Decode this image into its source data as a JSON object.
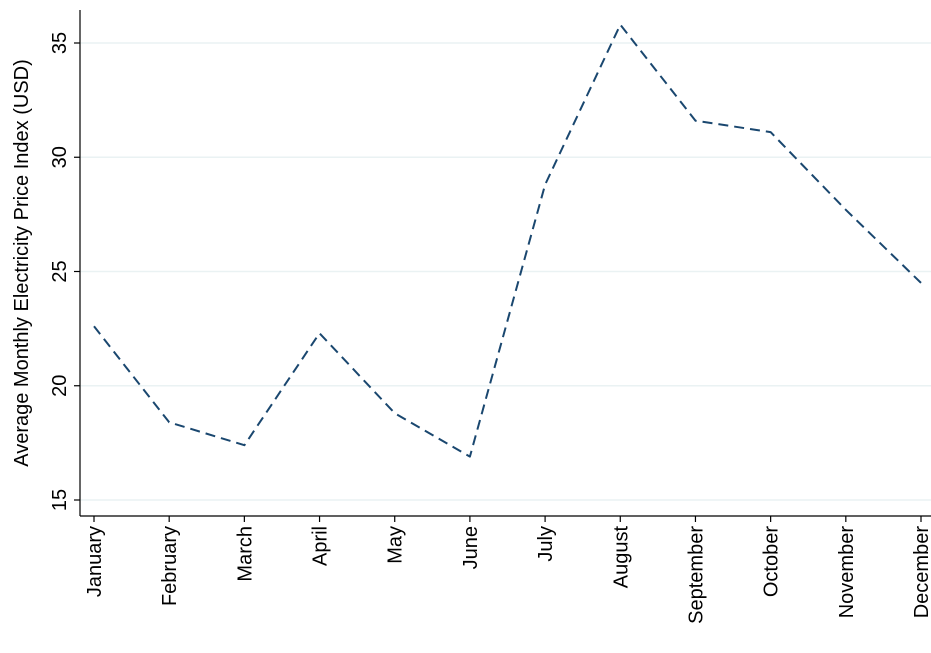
{
  "chart_data": {
    "type": "line",
    "title": "",
    "xlabel": "",
    "ylabel": "Average Monthly Electricity Price Index (USD)",
    "categories": [
      "January",
      "February",
      "March",
      "April",
      "May",
      "June",
      "July",
      "August",
      "September",
      "October",
      "November",
      "December"
    ],
    "series": [
      {
        "values": [
          22.6,
          18.4,
          17.4,
          22.3,
          18.8,
          16.9,
          28.8,
          35.8,
          31.6,
          31.1,
          27.7,
          24.5
        ],
        "color": "#1a476f",
        "line_style": "dashed"
      }
    ],
    "yticks": [
      15,
      20,
      25,
      30,
      35
    ],
    "ylim": [
      15,
      36.2
    ],
    "grid": true,
    "grid_color": "#eaf2f3",
    "legend": "none"
  }
}
